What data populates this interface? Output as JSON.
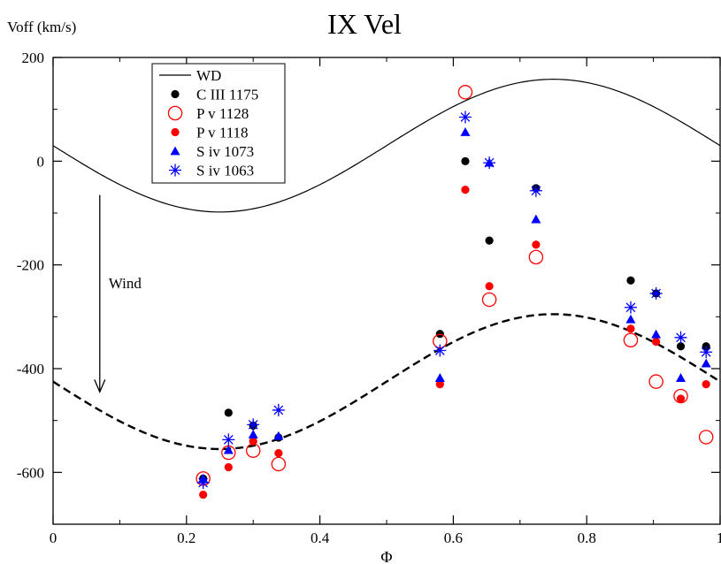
{
  "chart_data": {
    "type": "scatter",
    "title": "IX Vel",
    "xlabel": "Φ",
    "ylabel": "Voff (km/s)",
    "xlim": [
      0,
      1
    ],
    "ylim": [
      -700,
      200
    ],
    "grid": false,
    "legend_position": "top-left",
    "x_ticks": [
      0,
      0.2,
      0.4,
      0.6,
      0.8,
      1
    ],
    "x_tick_labels": [
      "0",
      "0.2",
      "0.4",
      "0.6",
      "0.8",
      "1"
    ],
    "y_ticks": [
      -600,
      -400,
      -200,
      0,
      200
    ],
    "y_tick_labels": [
      "-600",
      "-400",
      "-200",
      "0",
      "200"
    ],
    "annotation": {
      "text": "Wind",
      "arrow_x": 0.07,
      "arrow_from": -65,
      "arrow_to": -445
    },
    "curves": [
      {
        "name": "WD",
        "style": "solid",
        "color": "#000000",
        "offset": 30,
        "amplitude": 128,
        "phase0": 0.75
      },
      {
        "name": "",
        "style": "dashed",
        "color": "#000000",
        "offset": -425,
        "amplitude": 130,
        "phase0": 0.75
      }
    ],
    "series": [
      {
        "name": "C III 1175",
        "marker": "filled-circle",
        "color": "#000000",
        "x": [
          0.225,
          0.263,
          0.3,
          0.338,
          0.58,
          0.618,
          0.654,
          0.724,
          0.866,
          0.904,
          0.941,
          0.979
        ],
        "y": [
          -612,
          -485,
          -510,
          -533,
          -333,
          0,
          -153,
          -52,
          -230,
          -255,
          -357,
          -357
        ]
      },
      {
        "name": "P v 1128",
        "marker": "open-circle",
        "color": "#ff0000",
        "x": [
          0.225,
          0.263,
          0.3,
          0.338,
          0.58,
          0.618,
          0.654,
          0.724,
          0.866,
          0.904,
          0.941,
          0.979
        ],
        "y": [
          -612,
          -562,
          -558,
          -584,
          -347,
          133,
          -267,
          -185,
          -345,
          -425,
          -453,
          -532
        ]
      },
      {
        "name": "P v 1118",
        "marker": "filled-circle",
        "color": "#ff0000",
        "x": [
          0.225,
          0.263,
          0.3,
          0.338,
          0.58,
          0.618,
          0.654,
          0.724,
          0.866,
          0.904,
          0.941,
          0.979
        ],
        "y": [
          -643,
          -590,
          -540,
          -563,
          -430,
          -55,
          -241,
          -161,
          -323,
          -348,
          -458,
          -430
        ]
      },
      {
        "name": "S iv 1073",
        "marker": "filled-triangle",
        "color": "#0000ff",
        "x": [
          0.225,
          0.263,
          0.3,
          0.338,
          0.58,
          0.618,
          0.654,
          0.724,
          0.866,
          0.904,
          0.941,
          0.979
        ],
        "y": [
          -612,
          -557,
          -527,
          -530,
          -418,
          56,
          -3,
          -112,
          -305,
          -334,
          -418,
          -390
        ]
      },
      {
        "name": "S iv 1063",
        "marker": "asterisk",
        "color": "#0000ff",
        "x": [
          0.225,
          0.263,
          0.3,
          0.338,
          0.58,
          0.618,
          0.654,
          0.724,
          0.866,
          0.904,
          0.941,
          0.979
        ],
        "y": [
          -620,
          -537,
          -508,
          -480,
          -365,
          85,
          -3,
          -57,
          -282,
          -255,
          -340,
          -368
        ]
      }
    ]
  }
}
